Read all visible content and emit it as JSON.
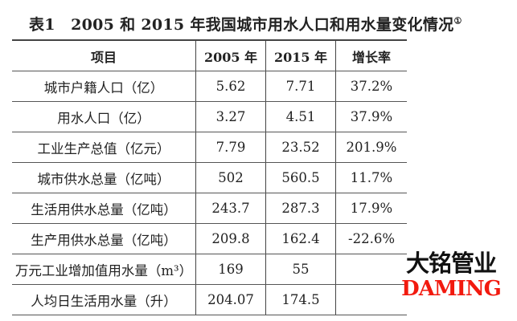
{
  "title": {
    "text": "表1　2005 和 2015 年我国城市用水人口和用水量变化情况",
    "footnote_mark": "①"
  },
  "table": {
    "headers": [
      "项目",
      "2005 年",
      "2015 年",
      "增长率"
    ],
    "rows": [
      {
        "item": "城市户籍人口（亿）",
        "y2005": "5.62",
        "y2015": "7.71",
        "growth": "37.2%"
      },
      {
        "item": "用水人口（亿）",
        "y2005": "3.27",
        "y2015": "4.51",
        "growth": "37.9%"
      },
      {
        "item": "工业生产总值（亿元）",
        "y2005": "7.79",
        "y2015": "23.52",
        "growth": "201.9%"
      },
      {
        "item": "城市供水总量（亿吨）",
        "y2005": "502",
        "y2015": "560.5",
        "growth": "11.7%"
      },
      {
        "item": "生活用供水总量（亿吨）",
        "y2005": "243.7",
        "y2015": "287.3",
        "growth": "17.9%"
      },
      {
        "item": "生产用供水总量（亿吨）",
        "y2005": "209.8",
        "y2015": "162.4",
        "growth": "-22.6%"
      },
      {
        "item": "万元工业增加值用水量（m³）",
        "y2005": "169",
        "y2015": "55",
        "growth": ""
      },
      {
        "item": "人均日生活用水量（升）",
        "y2005": "204.07",
        "y2015": "174.5",
        "growth": ""
      }
    ]
  },
  "watermark": {
    "cn": "大铭管业",
    "en": "DAMING",
    "en_color": "#f21a0f"
  }
}
